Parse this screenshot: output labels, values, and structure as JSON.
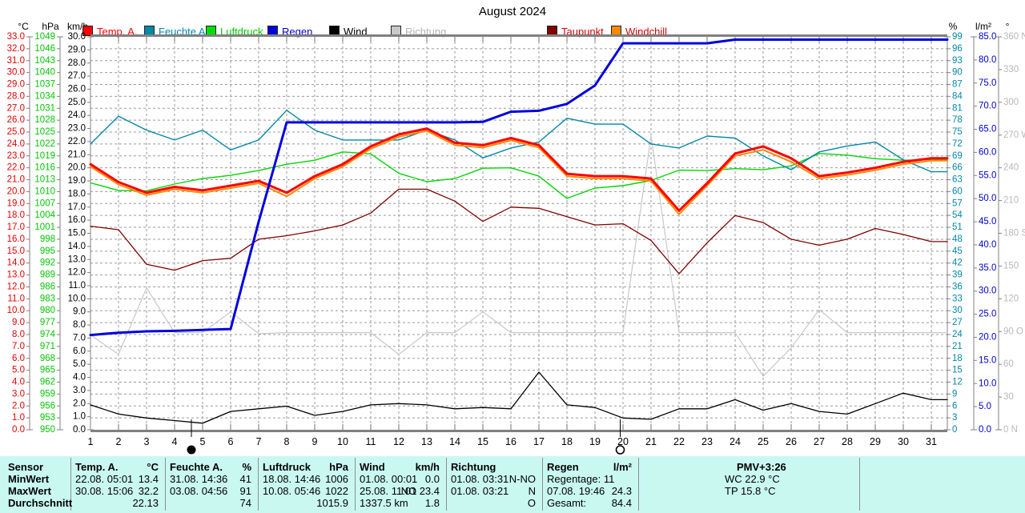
{
  "title": "August 2024",
  "legend": {
    "items": [
      {
        "label": "Temp. A.",
        "box": "#ff0000",
        "text": "#ff0000"
      },
      {
        "label": "Feuchte A.",
        "box": "#0088aa",
        "text": "#0088aa"
      },
      {
        "label": "Luftdruck",
        "box": "#00dd00",
        "text": "#00c800"
      },
      {
        "label": "Regen",
        "box": "#0000dd",
        "text": "#0000cc"
      },
      {
        "label": "Wind",
        "box": "#000000",
        "text": "#000000"
      },
      {
        "label": "Richtung",
        "box": "#c8c8c8",
        "text": "#b4b4b4"
      },
      {
        "label": "Taupunkt",
        "box": "#800000",
        "text": "#d40000"
      },
      {
        "label": "Windchill",
        "box": "#ff8800",
        "text": "#d40000"
      }
    ]
  },
  "axes": {
    "left": [
      {
        "unit": "°C",
        "color": "#e60000",
        "min": 0,
        "max": 33,
        "step": 1,
        "decimals": 1
      },
      {
        "unit": "hPa",
        "color": "#00c800",
        "min": 950,
        "max": 1049,
        "step": 3,
        "decimals": 0
      },
      {
        "unit": "km/h",
        "color": "#000000",
        "min": 0,
        "max": 30,
        "step": 1,
        "decimals": 1
      }
    ],
    "right": [
      {
        "unit": "%",
        "color": "#0088aa",
        "min": 0,
        "max": 99,
        "step": 3,
        "decimals": 0
      },
      {
        "unit": "l/m²",
        "color": "#0000cc",
        "min": 0,
        "max": 85,
        "step": 5,
        "decimals": 1
      },
      {
        "unit": "°",
        "color": "#b8b8b8",
        "min": 0,
        "max": 360,
        "step": 30,
        "decimals": 0,
        "cardinals": {
          "360": "N",
          "270": "W",
          "180": "S",
          "90": "O",
          "0": "N"
        }
      }
    ],
    "x_days": 31
  },
  "chart_data": {
    "type": "line",
    "title": "August 2024",
    "x": [
      1,
      2,
      3,
      4,
      5,
      6,
      7,
      8,
      9,
      10,
      11,
      12,
      13,
      14,
      15,
      16,
      17,
      18,
      19,
      20,
      21,
      22,
      23,
      24,
      25,
      26,
      27,
      28,
      29,
      30,
      31
    ],
    "axis_ranges": {
      "c": [
        0,
        33
      ],
      "hpa": [
        950,
        1049
      ],
      "kmh": [
        0,
        30
      ],
      "pct": [
        0,
        99
      ],
      "lm2": [
        0,
        85
      ],
      "deg": [
        0,
        360
      ]
    },
    "series": [
      {
        "name": "Richtung",
        "unit": "°",
        "color": "#c8c8c8",
        "width": 1.2,
        "scale": "deg",
        "values": [
          87,
          69,
          130,
          89,
          89,
          108,
          88,
          89,
          89,
          89,
          89,
          69,
          89,
          89,
          108,
          89,
          89,
          89,
          89,
          89,
          269,
          89,
          89,
          89,
          49,
          75,
          110,
          89,
          89,
          89,
          89
        ]
      },
      {
        "name": "Luftdruck",
        "unit": "hPa",
        "color": "#00d800",
        "width": 1.4,
        "scale": "hpa",
        "values": [
          1012.2,
          1010.3,
          1010.2,
          1011.9,
          1013.3,
          1014.1,
          1015.3,
          1016.9,
          1017.9,
          1020.0,
          1019.5,
          1014.6,
          1012.5,
          1013.3,
          1015.9,
          1016.0,
          1013.9,
          1008.3,
          1010.9,
          1011.5,
          1012.8,
          1015.4,
          1015.3,
          1015.8,
          1015.5,
          1016.5,
          1019.6,
          1019.2,
          1018.3,
          1017.9,
          1018.1
        ]
      },
      {
        "name": "Feuchte A.",
        "unit": "%",
        "color": "#0088aa",
        "width": 1.4,
        "scale": "pct",
        "values": [
          72,
          79,
          75.5,
          73,
          75.5,
          70.5,
          73,
          80.5,
          75.5,
          73,
          73,
          73,
          75.5,
          73,
          68.5,
          71,
          72.5,
          78.5,
          77,
          77,
          72,
          71,
          74,
          73.5,
          69,
          65.5,
          70,
          71.5,
          72.5,
          68,
          65
        ]
      },
      {
        "name": "Taupunkt",
        "unit": "°C",
        "color": "#800000",
        "width": 1.3,
        "scale": "c",
        "values": [
          17.1,
          16.8,
          13.9,
          13.4,
          14.2,
          14.4,
          16.0,
          16.3,
          16.7,
          17.2,
          18.2,
          20.2,
          20.2,
          19.2,
          17.5,
          18.7,
          18.6,
          17.9,
          17.2,
          17.3,
          15.9,
          13.1,
          15.7,
          18.0,
          17.4,
          16.0,
          15.5,
          16.0,
          16.9,
          16.4,
          15.8
        ]
      },
      {
        "name": "Wind",
        "unit": "km/h",
        "color": "#000000",
        "width": 1.3,
        "scale": "kmh",
        "values": [
          1.9,
          1.2,
          0.9,
          0.7,
          0.5,
          1.4,
          1.6,
          1.8,
          1.1,
          1.4,
          1.9,
          2.0,
          1.9,
          1.6,
          1.7,
          1.6,
          4.4,
          1.9,
          1.7,
          0.9,
          0.8,
          1.6,
          1.6,
          2.3,
          1.5,
          2.0,
          1.4,
          1.2,
          2.0,
          2.8,
          2.3
        ]
      },
      {
        "name": "Windchill",
        "unit": "°C",
        "color": "#ff8800",
        "width": 2,
        "scale": "c",
        "values": [
          22.1,
          20.6,
          19.7,
          20.2,
          19.9,
          20.3,
          20.7,
          19.6,
          21.1,
          22.1,
          23.6,
          24.6,
          25.1,
          23.9,
          23.7,
          24.3,
          23.7,
          21.3,
          21.1,
          21.1,
          20.9,
          18.1,
          20.5,
          23.0,
          23.5,
          22.5,
          21.1,
          21.4,
          21.8,
          22.3,
          22.6
        ]
      },
      {
        "name": "Temp. A.",
        "unit": "°C",
        "color": "#ff0000",
        "width": 3,
        "scale": "c",
        "values": [
          22.3,
          20.8,
          19.9,
          20.4,
          20.1,
          20.5,
          20.9,
          19.9,
          21.3,
          22.3,
          23.8,
          24.8,
          25.3,
          24.1,
          23.9,
          24.5,
          23.9,
          21.5,
          21.3,
          21.3,
          21.1,
          18.4,
          20.7,
          23.2,
          23.8,
          22.8,
          21.3,
          21.6,
          22.0,
          22.5,
          22.8
        ]
      },
      {
        "name": "Regen",
        "unit": "l/m²",
        "color": "#0000e0",
        "width": 3,
        "scale": "lm2",
        "values": [
          20.5,
          21.0,
          21.3,
          21.4,
          21.6,
          21.8,
          45.0,
          66.5,
          66.5,
          66.5,
          66.5,
          66.5,
          66.5,
          66.5,
          66.6,
          68.8,
          69.0,
          70.5,
          74.5,
          83.6,
          83.6,
          83.6,
          83.6,
          84.4,
          84.4,
          84.4,
          84.4,
          84.4,
          84.4,
          84.4,
          84.4
        ]
      }
    ],
    "moon_markers": [
      {
        "symbol": "new-moon",
        "day": 4.6
      },
      {
        "symbol": "full-moon",
        "day": 19.9
      }
    ],
    "grid": "dashed",
    "legend_position": "top"
  },
  "table": {
    "bg": "#c9f8f1",
    "row_labels": [
      "Sensor",
      "MinWert",
      "MaxWert",
      "Durchschnitt"
    ],
    "columns": [
      {
        "name": "Temp. A.",
        "unit": "°C",
        "rows": [
          [
            "22.08.  05:01",
            "13.4"
          ],
          [
            "30.08.  15:06",
            "32.2"
          ],
          [
            "",
            "22.13"
          ]
        ]
      },
      {
        "name": "Feuchte A.",
        "unit": "%",
        "rows": [
          [
            "31.08.  14:36",
            "41"
          ],
          [
            "03.08.  04:56",
            "91"
          ],
          [
            "",
            "74"
          ]
        ]
      },
      {
        "name": "Luftdruck",
        "unit": "hPa",
        "rows": [
          [
            "18.08.  14:46",
            "1006"
          ],
          [
            "10.08.  05:46",
            "1022"
          ],
          [
            "",
            "1015.9"
          ]
        ]
      },
      {
        "name": "Wind",
        "unit": "km/h",
        "rows": [
          [
            "01.08.  00:01",
            "0.0"
          ],
          [
            "25.08.  11:01",
            "NO 23.4"
          ],
          [
            "1337.5 km",
            "1.8"
          ]
        ]
      },
      {
        "name": "Richtung",
        "unit": "",
        "rows": [
          [
            "01.08.  03:31",
            "N-NO"
          ],
          [
            "01.08.  03:21",
            "N"
          ],
          [
            "",
            "O"
          ]
        ]
      },
      {
        "name": "Regen",
        "unit": "l/m²",
        "rows": [
          [
            "Regentage: 11",
            ""
          ],
          [
            "07.08.  19:46",
            "24.3"
          ],
          [
            "Gesamt:",
            "84.4"
          ]
        ]
      }
    ],
    "pmv": {
      "title": "PMV+3:26",
      "lines": [
        "WC 22.9 °C",
        "TP 15.8 °C"
      ]
    }
  }
}
